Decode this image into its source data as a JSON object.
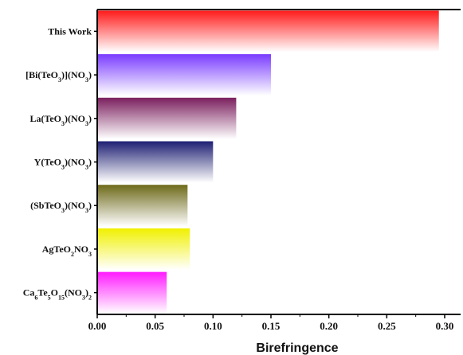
{
  "chart_data": {
    "type": "bar",
    "orientation": "horizontal",
    "xlabel": "Birefringence",
    "xlim": [
      0,
      0.3
    ],
    "xticks": [
      "0.00",
      "0.05",
      "0.10",
      "0.15",
      "0.20",
      "0.25",
      "0.30"
    ],
    "grid": false,
    "bars": [
      {
        "label": "This Work",
        "label_parts": [
          [
            "This Work",
            ""
          ]
        ],
        "value": 0.295,
        "color": "#ff1a1a"
      },
      {
        "label": "[Bi(TeO3)](NO3)",
        "label_parts": [
          [
            "[Bi(TeO",
            ""
          ],
          [
            "3",
            "sub"
          ],
          [
            ")](NO",
            ""
          ],
          [
            "3",
            "sub"
          ],
          [
            ")",
            ""
          ]
        ],
        "value": 0.15,
        "color": "#7a3cff"
      },
      {
        "label": "La(TeO3)(NO3)",
        "label_parts": [
          [
            "La(TeO",
            ""
          ],
          [
            "3",
            "sub"
          ],
          [
            ")(NO",
            ""
          ],
          [
            "3",
            "sub"
          ],
          [
            ")",
            ""
          ]
        ],
        "value": 0.12,
        "color": "#7b1f5e"
      },
      {
        "label": "Y(TeO3)(NO3)",
        "label_parts": [
          [
            "Y(TeO",
            ""
          ],
          [
            "3",
            "sub"
          ],
          [
            ")(NO",
            ""
          ],
          [
            "3",
            "sub"
          ],
          [
            ")",
            ""
          ]
        ],
        "value": 0.1,
        "color": "#1e1f73"
      },
      {
        "label": "(SbTeO3)(NO3)",
        "label_parts": [
          [
            "(SbTeO",
            ""
          ],
          [
            "3",
            "sub"
          ],
          [
            ")(NO",
            ""
          ],
          [
            "3",
            "sub"
          ],
          [
            ")",
            ""
          ]
        ],
        "value": 0.078,
        "color": "#6e6a1a"
      },
      {
        "label": "AgTeO2NO3",
        "label_parts": [
          [
            "AgTeO",
            ""
          ],
          [
            "2",
            "sub"
          ],
          [
            "NO",
            ""
          ],
          [
            "3",
            "sub"
          ]
        ],
        "value": 0.08,
        "color": "#f0f000"
      },
      {
        "label": "Ca6Te5O15(NO3)2",
        "label_parts": [
          [
            "Ca",
            ""
          ],
          [
            "6",
            "sub"
          ],
          [
            "Te",
            ""
          ],
          [
            "5",
            "sub"
          ],
          [
            "O",
            ""
          ],
          [
            "15",
            "sub"
          ],
          [
            "(NO",
            ""
          ],
          [
            "3",
            "sub"
          ],
          [
            ")",
            ""
          ],
          [
            "2",
            "sub"
          ]
        ],
        "value": 0.06,
        "color": "#ff1aff"
      }
    ]
  }
}
